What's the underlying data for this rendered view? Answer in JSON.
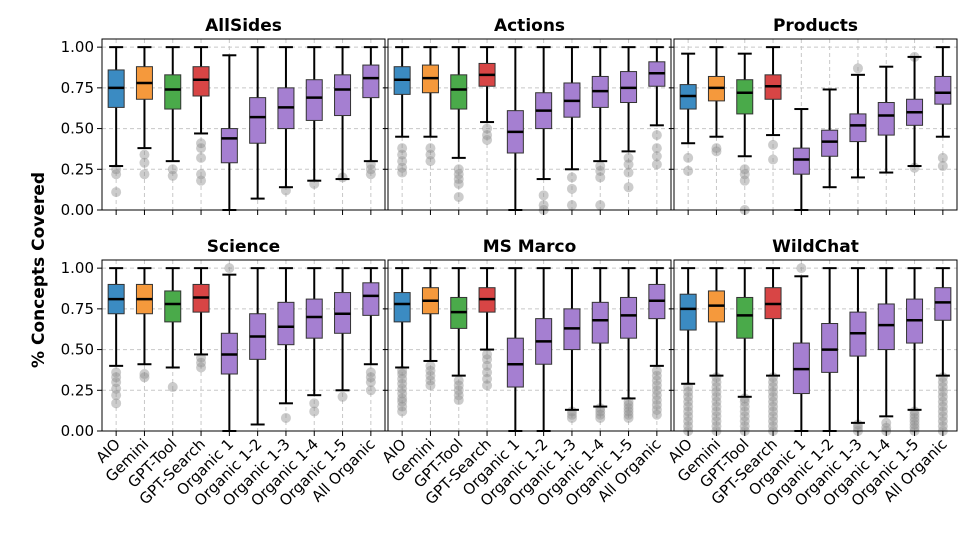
{
  "chart_data": {
    "type": "boxplot",
    "ylabel": "% Concepts Covered",
    "ylim": [
      0,
      1.05
    ],
    "yticks": [
      "0.00",
      "0.25",
      "0.50",
      "0.75",
      "1.00"
    ],
    "grid": true,
    "categories": [
      "AIO",
      "Gemini",
      "GPT-Tool",
      "GPT-Search",
      "Organic 1",
      "Organic 1-2",
      "Organic 1-3",
      "Organic 1-4",
      "Organic 1-5",
      "All Organic"
    ],
    "colors": [
      "#3b8bc2",
      "#f5993c",
      "#4aaa4a",
      "#d84545",
      "#a57fd1",
      "#a57fd1",
      "#a57fd1",
      "#a57fd1",
      "#a57fd1",
      "#a57fd1"
    ],
    "panels": [
      {
        "title": "AllSides",
        "boxes": [
          {
            "whislo": 0.27,
            "q1": 0.63,
            "med": 0.75,
            "q3": 0.86,
            "whishi": 1.0,
            "fliers": [
              0.11,
              0.22,
              0.25
            ]
          },
          {
            "whislo": 0.38,
            "q1": 0.68,
            "med": 0.78,
            "q3": 0.88,
            "whishi": 1.0,
            "fliers": [
              0.22,
              0.29,
              0.34
            ]
          },
          {
            "whislo": 0.3,
            "q1": 0.62,
            "med": 0.74,
            "q3": 0.83,
            "whishi": 1.0,
            "fliers": [
              0.21,
              0.25
            ]
          },
          {
            "whislo": 0.47,
            "q1": 0.7,
            "med": 0.8,
            "q3": 0.88,
            "whishi": 1.0,
            "fliers": [
              0.18,
              0.22,
              0.32,
              0.38,
              0.41
            ]
          },
          {
            "whislo": 0.0,
            "q1": 0.29,
            "med": 0.44,
            "q3": 0.5,
            "whishi": 0.95,
            "fliers": []
          },
          {
            "whislo": 0.07,
            "q1": 0.41,
            "med": 0.57,
            "q3": 0.69,
            "whishi": 1.0,
            "fliers": []
          },
          {
            "whislo": 0.14,
            "q1": 0.5,
            "med": 0.63,
            "q3": 0.75,
            "whishi": 1.0,
            "fliers": [
              0.12
            ]
          },
          {
            "whislo": 0.18,
            "q1": 0.55,
            "med": 0.69,
            "q3": 0.8,
            "whishi": 1.0,
            "fliers": [
              0.16
            ]
          },
          {
            "whislo": 0.19,
            "q1": 0.58,
            "med": 0.74,
            "q3": 0.83,
            "whishi": 1.0,
            "fliers": [
              0.2
            ]
          },
          {
            "whislo": 0.3,
            "q1": 0.69,
            "med": 0.81,
            "q3": 0.89,
            "whishi": 1.0,
            "fliers": [
              0.22,
              0.25,
              0.28
            ]
          }
        ]
      },
      {
        "title": "Actions",
        "boxes": [
          {
            "whislo": 0.45,
            "q1": 0.71,
            "med": 0.8,
            "q3": 0.88,
            "whishi": 1.0,
            "fliers": [
              0.23,
              0.26,
              0.3,
              0.34,
              0.38
            ]
          },
          {
            "whislo": 0.45,
            "q1": 0.72,
            "med": 0.81,
            "q3": 0.89,
            "whishi": 1.0,
            "fliers": [
              0.3,
              0.34,
              0.38
            ]
          },
          {
            "whislo": 0.32,
            "q1": 0.62,
            "med": 0.74,
            "q3": 0.83,
            "whishi": 1.0,
            "fliers": [
              0.08,
              0.16,
              0.19,
              0.22,
              0.25
            ]
          },
          {
            "whislo": 0.54,
            "q1": 0.76,
            "med": 0.83,
            "q3": 0.9,
            "whishi": 1.0,
            "fliers": [
              0.43,
              0.46,
              0.5
            ]
          },
          {
            "whislo": 0.0,
            "q1": 0.35,
            "med": 0.48,
            "q3": 0.61,
            "whishi": 1.0,
            "fliers": []
          },
          {
            "whislo": 0.19,
            "q1": 0.5,
            "med": 0.61,
            "q3": 0.72,
            "whishi": 1.0,
            "fliers": [
              0.0,
              0.03,
              0.09
            ]
          },
          {
            "whislo": 0.25,
            "q1": 0.57,
            "med": 0.67,
            "q3": 0.78,
            "whishi": 1.0,
            "fliers": [
              0.03,
              0.13,
              0.2
            ]
          },
          {
            "whislo": 0.3,
            "q1": 0.63,
            "med": 0.73,
            "q3": 0.82,
            "whishi": 1.0,
            "fliers": [
              0.03,
              0.2,
              0.24,
              0.27
            ]
          },
          {
            "whislo": 0.36,
            "q1": 0.66,
            "med": 0.75,
            "q3": 0.85,
            "whishi": 1.0,
            "fliers": [
              0.14,
              0.23,
              0.28,
              0.32
            ]
          },
          {
            "whislo": 0.52,
            "q1": 0.76,
            "med": 0.84,
            "q3": 0.91,
            "whishi": 1.0,
            "fliers": [
              0.28,
              0.33,
              0.38,
              0.46
            ]
          }
        ]
      },
      {
        "title": "Products",
        "boxes": [
          {
            "whislo": 0.41,
            "q1": 0.62,
            "med": 0.7,
            "q3": 0.77,
            "whishi": 0.96,
            "fliers": [
              0.24,
              0.32
            ]
          },
          {
            "whislo": 0.45,
            "q1": 0.67,
            "med": 0.75,
            "q3": 0.82,
            "whishi": 1.0,
            "fliers": [
              0.36,
              0.38
            ]
          },
          {
            "whislo": 0.33,
            "q1": 0.59,
            "med": 0.72,
            "q3": 0.8,
            "whishi": 0.96,
            "fliers": [
              0.0,
              0.18,
              0.22,
              0.25
            ]
          },
          {
            "whislo": 0.46,
            "q1": 0.68,
            "med": 0.76,
            "q3": 0.83,
            "whishi": 1.0,
            "fliers": [
              0.31,
              0.4
            ]
          },
          {
            "whislo": 0.0,
            "q1": 0.22,
            "med": 0.31,
            "q3": 0.38,
            "whishi": 0.62,
            "fliers": []
          },
          {
            "whislo": 0.14,
            "q1": 0.33,
            "med": 0.42,
            "q3": 0.49,
            "whishi": 0.74,
            "fliers": []
          },
          {
            "whislo": 0.2,
            "q1": 0.42,
            "med": 0.52,
            "q3": 0.59,
            "whishi": 0.83,
            "fliers": [
              0.87
            ]
          },
          {
            "whislo": 0.23,
            "q1": 0.46,
            "med": 0.58,
            "q3": 0.66,
            "whishi": 0.88,
            "fliers": []
          },
          {
            "whislo": 0.27,
            "q1": 0.52,
            "med": 0.6,
            "q3": 0.68,
            "whishi": 0.94,
            "fliers": [
              0.26,
              0.94
            ]
          },
          {
            "whislo": 0.45,
            "q1": 0.65,
            "med": 0.72,
            "q3": 0.82,
            "whishi": 1.0,
            "fliers": [
              0.27,
              0.32
            ]
          }
        ]
      },
      {
        "title": "Science",
        "boxes": [
          {
            "whislo": 0.4,
            "q1": 0.72,
            "med": 0.81,
            "q3": 0.9,
            "whishi": 1.0,
            "fliers": [
              0.17,
              0.22,
              0.26,
              0.3,
              0.33,
              0.36
            ]
          },
          {
            "whislo": 0.41,
            "q1": 0.72,
            "med": 0.81,
            "q3": 0.9,
            "whishi": 1.0,
            "fliers": [
              0.33,
              0.35
            ]
          },
          {
            "whislo": 0.39,
            "q1": 0.67,
            "med": 0.78,
            "q3": 0.86,
            "whishi": 1.0,
            "fliers": [
              0.27
            ]
          },
          {
            "whislo": 0.47,
            "q1": 0.73,
            "med": 0.82,
            "q3": 0.9,
            "whishi": 1.0,
            "fliers": [
              0.39,
              0.42,
              0.45
            ]
          },
          {
            "whislo": 0.0,
            "q1": 0.35,
            "med": 0.47,
            "q3": 0.6,
            "whishi": 0.96,
            "fliers": [
              1.0
            ]
          },
          {
            "whislo": 0.04,
            "q1": 0.44,
            "med": 0.58,
            "q3": 0.72,
            "whishi": 1.0,
            "fliers": []
          },
          {
            "whislo": 0.17,
            "q1": 0.53,
            "med": 0.64,
            "q3": 0.79,
            "whishi": 1.0,
            "fliers": [
              0.08
            ]
          },
          {
            "whislo": 0.22,
            "q1": 0.57,
            "med": 0.7,
            "q3": 0.81,
            "whishi": 1.0,
            "fliers": [
              0.12,
              0.17
            ]
          },
          {
            "whislo": 0.25,
            "q1": 0.6,
            "med": 0.72,
            "q3": 0.85,
            "whishi": 1.0,
            "fliers": [
              0.21
            ]
          },
          {
            "whislo": 0.41,
            "q1": 0.71,
            "med": 0.83,
            "q3": 0.91,
            "whishi": 1.0,
            "fliers": [
              0.25,
              0.3,
              0.33,
              0.36
            ]
          }
        ]
      },
      {
        "title": "MS Marco",
        "boxes": [
          {
            "whislo": 0.39,
            "q1": 0.67,
            "med": 0.78,
            "q3": 0.85,
            "whishi": 1.0,
            "fliers": [
              0.12,
              0.15,
              0.18,
              0.2,
              0.23,
              0.26,
              0.29,
              0.32,
              0.35,
              0.37
            ]
          },
          {
            "whislo": 0.43,
            "q1": 0.72,
            "med": 0.8,
            "q3": 0.88,
            "whishi": 1.0,
            "fliers": [
              0.28,
              0.31,
              0.34,
              0.37,
              0.4
            ]
          },
          {
            "whislo": 0.34,
            "q1": 0.63,
            "med": 0.73,
            "q3": 0.82,
            "whishi": 1.0,
            "fliers": [
              0.19,
              0.22,
              0.25,
              0.28,
              0.31
            ]
          },
          {
            "whislo": 0.5,
            "q1": 0.73,
            "med": 0.81,
            "q3": 0.88,
            "whishi": 1.0,
            "fliers": [
              0.28,
              0.32,
              0.36,
              0.4,
              0.44,
              0.47
            ]
          },
          {
            "whislo": 0.0,
            "q1": 0.27,
            "med": 0.41,
            "q3": 0.57,
            "whishi": 1.0,
            "fliers": []
          },
          {
            "whislo": 0.0,
            "q1": 0.41,
            "med": 0.55,
            "q3": 0.69,
            "whishi": 1.0,
            "fliers": []
          },
          {
            "whislo": 0.13,
            "q1": 0.5,
            "med": 0.63,
            "q3": 0.75,
            "whishi": 1.0,
            "fliers": [
              0.08,
              0.1,
              0.12
            ]
          },
          {
            "whislo": 0.15,
            "q1": 0.54,
            "med": 0.68,
            "q3": 0.79,
            "whishi": 1.0,
            "fliers": [
              0.08,
              0.1,
              0.12,
              0.14
            ]
          },
          {
            "whislo": 0.2,
            "q1": 0.57,
            "med": 0.71,
            "q3": 0.82,
            "whishi": 1.0,
            "fliers": [
              0.08,
              0.1,
              0.12,
              0.14,
              0.16,
              0.18
            ]
          },
          {
            "whislo": 0.4,
            "q1": 0.69,
            "med": 0.8,
            "q3": 0.9,
            "whishi": 1.0,
            "fliers": [
              0.1,
              0.13,
              0.16,
              0.19,
              0.22,
              0.25,
              0.28,
              0.31,
              0.34,
              0.37
            ]
          }
        ]
      },
      {
        "title": "WildChat",
        "boxes": [
          {
            "whislo": 0.29,
            "q1": 0.62,
            "med": 0.75,
            "q3": 0.84,
            "whishi": 1.0,
            "fliers": [
              0.0,
              0.03,
              0.06,
              0.09,
              0.12,
              0.15,
              0.18,
              0.21,
              0.24,
              0.27
            ]
          },
          {
            "whislo": 0.34,
            "q1": 0.67,
            "med": 0.77,
            "q3": 0.86,
            "whishi": 1.0,
            "fliers": [
              0.0,
              0.03,
              0.06,
              0.09,
              0.12,
              0.15,
              0.18,
              0.21,
              0.24,
              0.27,
              0.3,
              0.33
            ]
          },
          {
            "whislo": 0.21,
            "q1": 0.57,
            "med": 0.71,
            "q3": 0.82,
            "whishi": 1.0,
            "fliers": [
              0.0,
              0.03,
              0.06,
              0.09,
              0.12,
              0.15,
              0.18,
              0.2
            ]
          },
          {
            "whislo": 0.34,
            "q1": 0.69,
            "med": 0.78,
            "q3": 0.88,
            "whishi": 1.0,
            "fliers": [
              0.0,
              0.03,
              0.06,
              0.09,
              0.12,
              0.15,
              0.18,
              0.21,
              0.24,
              0.27,
              0.3,
              0.33
            ]
          },
          {
            "whislo": 0.0,
            "q1": 0.23,
            "med": 0.38,
            "q3": 0.54,
            "whishi": 0.95,
            "fliers": [
              1.0
            ]
          },
          {
            "whislo": 0.0,
            "q1": 0.36,
            "med": 0.5,
            "q3": 0.66,
            "whishi": 1.0,
            "fliers": []
          },
          {
            "whislo": 0.05,
            "q1": 0.46,
            "med": 0.6,
            "q3": 0.73,
            "whishi": 1.0,
            "fliers": [
              0.0,
              0.02,
              0.04
            ]
          },
          {
            "whislo": 0.09,
            "q1": 0.5,
            "med": 0.65,
            "q3": 0.78,
            "whishi": 1.0,
            "fliers": [
              0.0,
              0.02,
              0.05
            ]
          },
          {
            "whislo": 0.13,
            "q1": 0.54,
            "med": 0.68,
            "q3": 0.81,
            "whishi": 1.0,
            "fliers": [
              0.0,
              0.02,
              0.04,
              0.06,
              0.08,
              0.1,
              0.12
            ]
          },
          {
            "whislo": 0.34,
            "q1": 0.68,
            "med": 0.79,
            "q3": 0.88,
            "whishi": 1.0,
            "fliers": [
              0.0,
              0.03,
              0.06,
              0.09,
              0.12,
              0.15,
              0.18,
              0.21,
              0.24,
              0.27,
              0.3,
              0.33
            ]
          }
        ]
      }
    ]
  }
}
